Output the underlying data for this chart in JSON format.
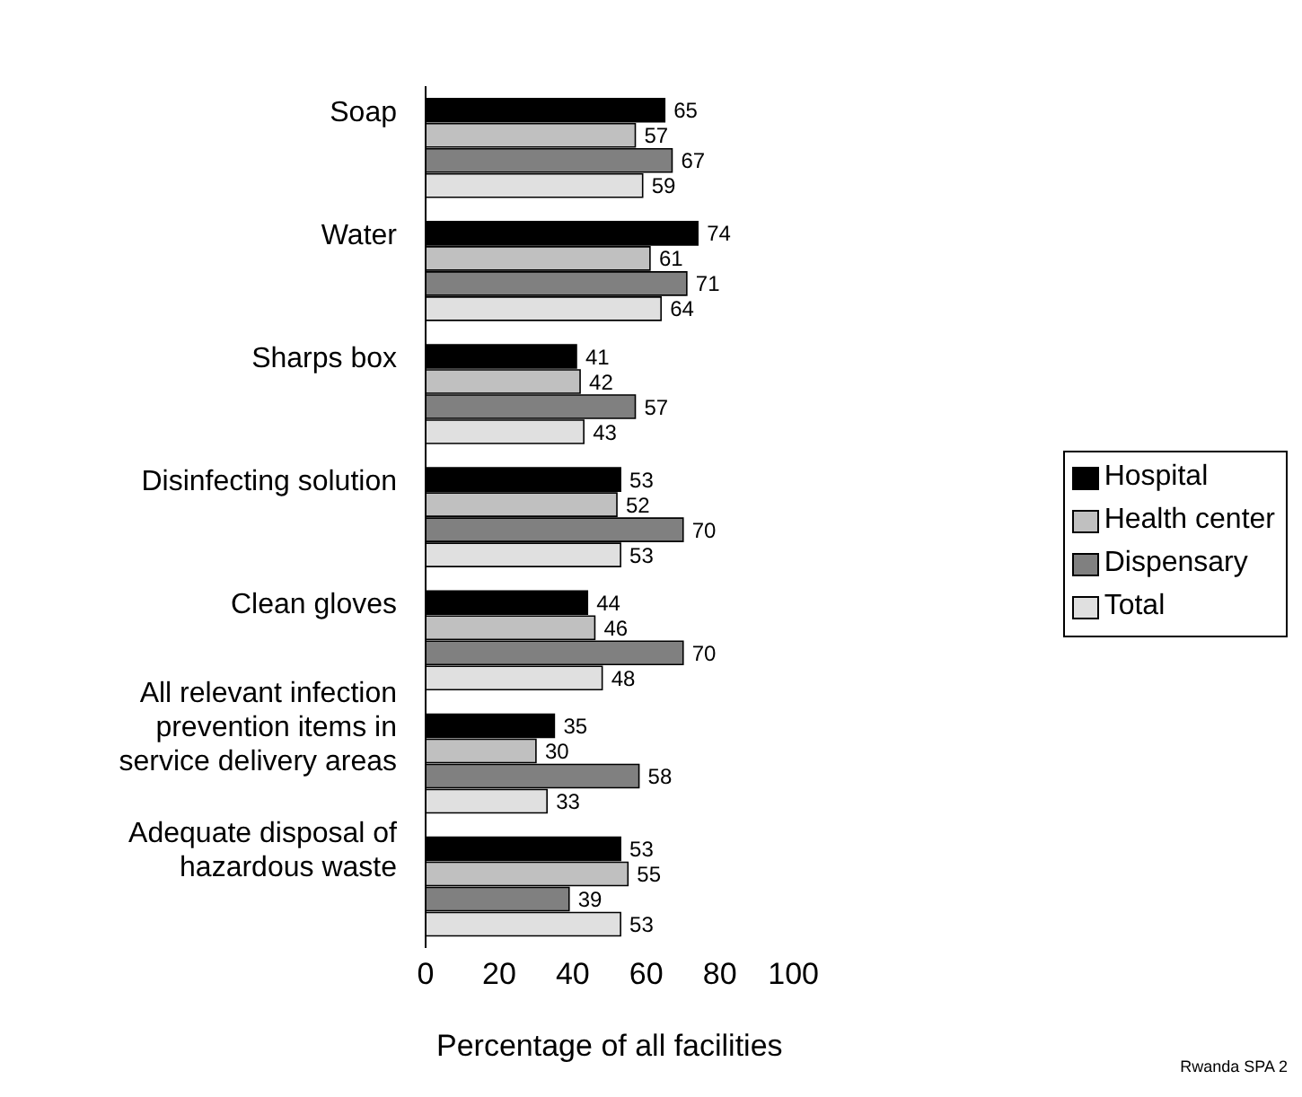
{
  "chart_data": {
    "type": "bar",
    "orientation": "horizontal",
    "xlabel": "Percentage of all facilities",
    "categories": [
      "Soap",
      "Water",
      "Sharps box",
      "Disinfecting solution",
      "Clean gloves",
      "All relevant infection prevention items in service delivery areas",
      "Adequate disposal of hazardous waste"
    ],
    "series": [
      {
        "name": "Hospital",
        "color": "#000000",
        "values": [
          65,
          74,
          41,
          53,
          44,
          35,
          53
        ]
      },
      {
        "name": "Health center",
        "color": "#c0c0c0",
        "values": [
          57,
          61,
          42,
          52,
          46,
          30,
          55
        ]
      },
      {
        "name": "Dispensary",
        "color": "#808080",
        "values": [
          67,
          71,
          57,
          70,
          70,
          58,
          39
        ]
      },
      {
        "name": "Total",
        "color": "#e0e0e0",
        "values": [
          59,
          64,
          43,
          53,
          48,
          33,
          53
        ]
      }
    ],
    "xlim": [
      0,
      100
    ],
    "xticks": [
      0,
      20,
      40,
      60,
      80,
      100
    ],
    "legend": "right",
    "data_labels": true,
    "annotations": [
      "Rwanda SPA 2"
    ]
  }
}
